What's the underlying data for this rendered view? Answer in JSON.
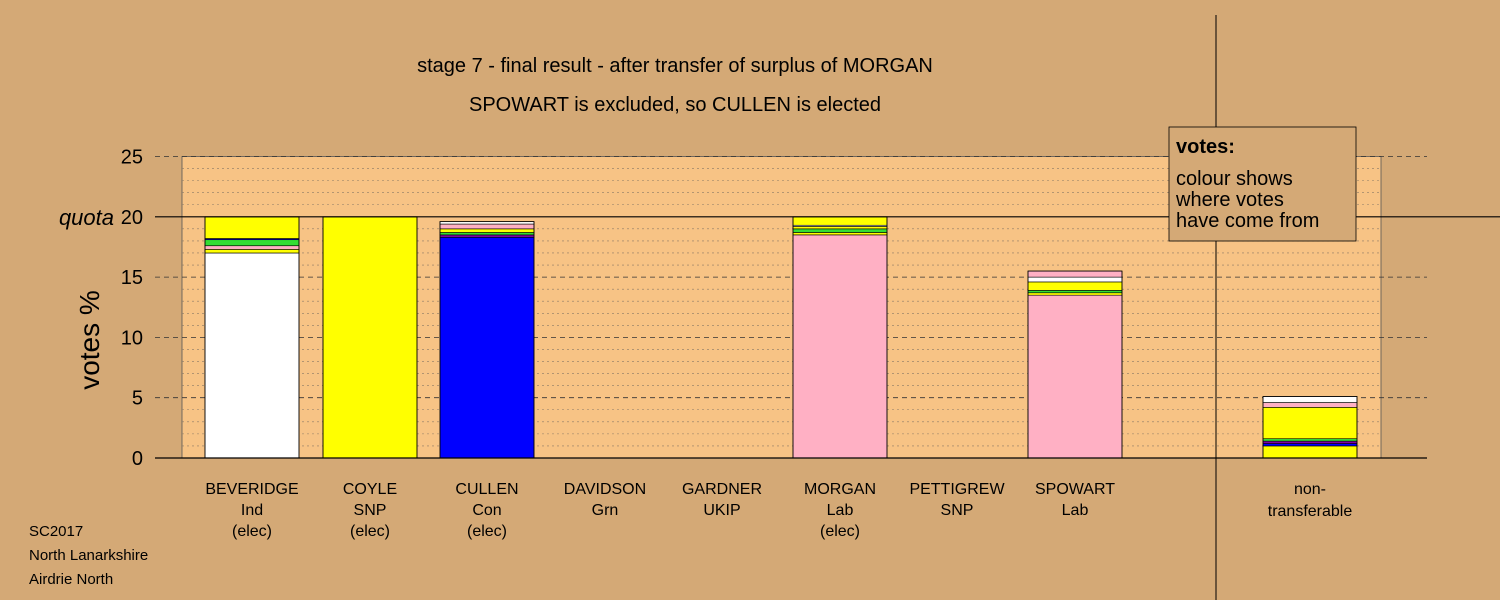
{
  "chart_data": {
    "type": "bar",
    "title": "stage 7 - final result - after transfer of surplus of MORGAN",
    "subtitle": "SPOWART is excluded, so CULLEN is elected",
    "ylabel": "votes %",
    "ylim": [
      0,
      25
    ],
    "yticks": [
      0,
      5,
      10,
      15,
      20,
      25
    ],
    "quota": 20,
    "quota_label": "quota",
    "legend": {
      "heading": "votes:",
      "lines": [
        "colour shows",
        "where votes",
        "have come from"
      ]
    },
    "colors": {
      "background": "#d4a976",
      "plot_area": "#f7c385",
      "Ind": "#ffffff",
      "SNP": "#ffff00",
      "Con": "#0000ff",
      "Lab": "#ffb0c4",
      "Grn": "#33dd33",
      "UKIP": "#8000a0"
    },
    "candidates": [
      {
        "name": "BEVERIDGE",
        "party": "Ind",
        "status": "(elec)",
        "segments": [
          {
            "from": "Ind",
            "value": 17.0
          },
          {
            "from": "SNP",
            "value": 0.3
          },
          {
            "from": "Lab",
            "value": 0.3
          },
          {
            "from": "Grn",
            "value": 0.5
          },
          {
            "from": "Con",
            "value": 0.1
          },
          {
            "from": "SNP",
            "value": 1.8
          }
        ]
      },
      {
        "name": "COYLE",
        "party": "SNP",
        "status": "(elec)",
        "segments": [
          {
            "from": "SNP",
            "value": 20.0
          }
        ]
      },
      {
        "name": "CULLEN",
        "party": "Con",
        "status": "(elec)",
        "segments": [
          {
            "from": "Con",
            "value": 18.3
          },
          {
            "from": "UKIP",
            "value": 0.2
          },
          {
            "from": "Grn",
            "value": 0.2
          },
          {
            "from": "SNP",
            "value": 0.3
          },
          {
            "from": "Lab",
            "value": 0.4
          },
          {
            "from": "Ind",
            "value": 0.2
          }
        ]
      },
      {
        "name": "DAVIDSON",
        "party": "Grn",
        "status": "",
        "segments": []
      },
      {
        "name": "GARDNER",
        "party": "UKIP",
        "status": "",
        "segments": []
      },
      {
        "name": "MORGAN",
        "party": "Lab",
        "status": "(elec)",
        "segments": [
          {
            "from": "Lab",
            "value": 18.5
          },
          {
            "from": "SNP",
            "value": 0.2
          },
          {
            "from": "Grn",
            "value": 0.3
          },
          {
            "from": "SNP",
            "value": 0.2
          },
          {
            "from": "Ind",
            "value": 0.1
          },
          {
            "from": "SNP",
            "value": 0.7
          }
        ]
      },
      {
        "name": "PETTIGREW",
        "party": "SNP",
        "status": "",
        "segments": []
      },
      {
        "name": "SPOWART",
        "party": "Lab",
        "status": "",
        "segments": [
          {
            "from": "Lab",
            "value": 13.5
          },
          {
            "from": "SNP",
            "value": 0.2
          },
          {
            "from": "Grn",
            "value": 0.2
          },
          {
            "from": "SNP",
            "value": 0.7
          },
          {
            "from": "Ind",
            "value": 0.4
          },
          {
            "from": "Lab",
            "value": 0.5
          }
        ]
      }
    ],
    "nontransferable": {
      "label_lines": [
        "non-",
        "transferable"
      ],
      "segments": [
        {
          "from": "SNP",
          "value": 1.0
        },
        {
          "from": "Con",
          "value": 0.2
        },
        {
          "from": "UKIP",
          "value": 0.2
        },
        {
          "from": "Grn",
          "value": 0.2
        },
        {
          "from": "SNP",
          "value": 2.6
        },
        {
          "from": "Lab",
          "value": 0.4
        },
        {
          "from": "Ind",
          "value": 0.5
        }
      ]
    }
  },
  "footer": {
    "line1": "SC2017",
    "line2": "North Lanarkshire",
    "line3": "Airdrie North"
  }
}
